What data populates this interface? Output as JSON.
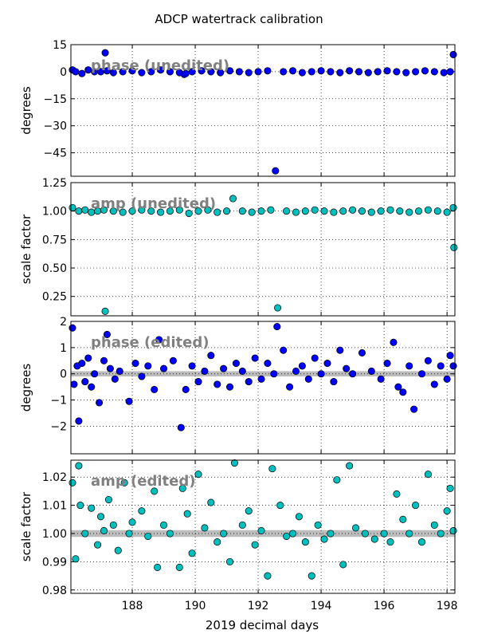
{
  "title": "ADCP watertrack calibration",
  "xlabel": "2019 decimal days",
  "colors": {
    "phase": "#0000ff",
    "amp": "#00bfbf",
    "band": "#a0a0a0"
  },
  "chart_data": [
    {
      "type": "scatter",
      "annotation": "phase (unedited)",
      "ylabel": "degrees",
      "ylim": [
        -58,
        15
      ],
      "xlim": [
        186.05,
        198.25
      ],
      "yticks": [
        "15",
        "0",
        "−15",
        "−30",
        "−45"
      ],
      "ytick_values": [
        15,
        0,
        -15,
        -30,
        -45
      ],
      "grid": true,
      "marker_color": "#0000ff",
      "x": [
        186.1,
        186.2,
        186.4,
        186.6,
        186.8,
        187.0,
        187.2,
        187.14,
        187.4,
        187.7,
        188.0,
        188.3,
        188.6,
        188.9,
        189.2,
        189.5,
        189.65,
        189.7,
        189.9,
        190.2,
        190.5,
        190.8,
        191.1,
        191.4,
        191.7,
        192.0,
        192.3,
        192.55,
        192.8,
        193.1,
        193.4,
        193.7,
        194.0,
        194.3,
        194.6,
        194.9,
        195.2,
        195.5,
        195.8,
        196.1,
        196.4,
        196.7,
        197.0,
        197.3,
        197.6,
        197.9,
        198.1,
        198.2
      ],
      "y": [
        1,
        0,
        -1,
        1,
        0,
        0,
        0.5,
        10.5,
        -0.5,
        0,
        0.5,
        -0.5,
        0,
        1,
        0,
        -0.5,
        -1.5,
        -1,
        0,
        0.5,
        0,
        -0.5,
        0.5,
        0,
        -0.5,
        0,
        0.5,
        -55,
        0,
        0.5,
        -0.5,
        0,
        0.5,
        0,
        -0.5,
        0.5,
        0,
        -0.5,
        0,
        0.5,
        0,
        -0.5,
        0,
        0.5,
        0,
        -0.5,
        0,
        9.5
      ]
    },
    {
      "type": "scatter",
      "annotation": "amp (unedited)",
      "ylabel": "scale factor",
      "ylim": [
        0.08,
        1.25
      ],
      "xlim": [
        186.05,
        198.25
      ],
      "yticks": [
        "1.25",
        "1.00",
        "0.75",
        "0.50",
        "0.25"
      ],
      "ytick_values": [
        1.25,
        1.0,
        0.75,
        0.5,
        0.25
      ],
      "grid": true,
      "marker_color": "#00bfbf",
      "x": [
        186.1,
        186.3,
        186.5,
        186.7,
        186.9,
        187.1,
        187.14,
        187.4,
        187.7,
        188.0,
        188.3,
        188.6,
        188.9,
        189.2,
        189.5,
        189.8,
        190.1,
        190.4,
        190.7,
        191.0,
        191.2,
        191.5,
        191.8,
        192.1,
        192.4,
        192.62,
        192.9,
        193.2,
        193.5,
        193.8,
        194.1,
        194.4,
        194.7,
        195.0,
        195.3,
        195.6,
        195.9,
        196.2,
        196.5,
        196.8,
        197.1,
        197.4,
        197.7,
        198.0,
        198.2,
        198.22
      ],
      "y": [
        1.03,
        1.0,
        1.01,
        0.99,
        1.0,
        1.01,
        0.12,
        1.0,
        0.99,
        1.0,
        1.01,
        1.0,
        0.99,
        1.0,
        1.01,
        0.98,
        1.0,
        1.01,
        0.99,
        1.0,
        1.11,
        1.0,
        0.99,
        1.0,
        1.01,
        0.15,
        1.0,
        0.99,
        1.0,
        1.01,
        1.0,
        0.99,
        1.0,
        1.01,
        1.0,
        0.99,
        1.0,
        1.01,
        1.0,
        0.99,
        1.0,
        1.01,
        1.0,
        0.99,
        1.03,
        0.68
      ]
    },
    {
      "type": "scatter",
      "annotation": "phase (edited)",
      "ylabel": "degrees",
      "ylim": [
        -3.05,
        2.0
      ],
      "xlim": [
        186.05,
        198.25
      ],
      "yticks": [
        "2",
        "1",
        "0",
        "−1",
        "−2"
      ],
      "ytick_values": [
        2,
        1,
        0,
        -1,
        -2
      ],
      "band": [
        -0.1,
        0.1
      ],
      "grid": true,
      "marker_color": "#0000ff",
      "x": [
        186.1,
        186.15,
        186.25,
        186.3,
        186.4,
        186.5,
        186.6,
        186.7,
        186.8,
        186.95,
        187.1,
        187.2,
        187.3,
        187.45,
        187.6,
        187.9,
        188.1,
        188.3,
        188.5,
        188.7,
        188.85,
        189.0,
        189.3,
        189.55,
        189.7,
        189.9,
        190.1,
        190.3,
        190.5,
        190.7,
        190.9,
        191.1,
        191.3,
        191.5,
        191.7,
        191.9,
        192.1,
        192.3,
        192.5,
        192.6,
        192.8,
        193.0,
        193.2,
        193.4,
        193.6,
        193.8,
        194.0,
        194.2,
        194.4,
        194.6,
        194.8,
        195.0,
        195.3,
        195.6,
        195.9,
        196.1,
        196.3,
        196.45,
        196.6,
        196.8,
        196.95,
        197.2,
        197.4,
        197.6,
        197.8,
        198.0,
        198.1,
        198.2
      ],
      "y": [
        1.75,
        -0.4,
        0.3,
        -1.8,
        0.4,
        -0.3,
        0.6,
        -0.5,
        0.0,
        -1.1,
        0.5,
        1.5,
        0.2,
        -0.2,
        0.1,
        -1.05,
        0.4,
        -0.1,
        0.3,
        -0.6,
        1.3,
        0.2,
        0.5,
        -2.05,
        -0.6,
        0.3,
        -0.3,
        0.1,
        0.7,
        -0.4,
        0.2,
        -0.5,
        0.4,
        0.1,
        -0.3,
        0.6,
        -0.2,
        0.4,
        0.0,
        1.8,
        0.9,
        -0.5,
        0.1,
        0.3,
        -0.2,
        0.6,
        0.0,
        0.4,
        -0.3,
        0.9,
        0.2,
        0.0,
        0.8,
        0.1,
        -0.2,
        0.4,
        1.2,
        -0.5,
        -0.7,
        0.3,
        -1.35,
        0.0,
        0.5,
        -0.4,
        0.3,
        -0.2,
        0.7,
        0.3
      ]
    },
    {
      "type": "scatter",
      "annotation": "amp (edited)",
      "ylabel": "scale factor",
      "ylim": [
        0.9788,
        1.026
      ],
      "xlim": [
        186.05,
        198.25
      ],
      "yticks": [
        "1.02",
        "1.01",
        "1.00",
        "0.99",
        "0.98"
      ],
      "ytick_values": [
        1.02,
        1.01,
        1.0,
        0.99,
        0.98
      ],
      "band": [
        0.9988,
        1.0012
      ],
      "grid": true,
      "marker_color": "#00bfbf",
      "x": [
        186.1,
        186.2,
        186.3,
        186.35,
        186.5,
        186.7,
        186.9,
        187.0,
        187.1,
        187.25,
        187.4,
        187.55,
        187.75,
        187.9,
        188.0,
        188.3,
        188.5,
        188.7,
        188.8,
        189.0,
        189.2,
        189.5,
        189.6,
        189.75,
        189.9,
        190.1,
        190.3,
        190.5,
        190.7,
        190.9,
        191.1,
        191.25,
        191.5,
        191.7,
        191.9,
        192.1,
        192.3,
        192.45,
        192.7,
        192.9,
        193.1,
        193.3,
        193.5,
        193.7,
        193.9,
        194.1,
        194.3,
        194.5,
        194.7,
        194.9,
        195.1,
        195.4,
        195.7,
        196.0,
        196.2,
        196.4,
        196.6,
        196.8,
        197.0,
        197.2,
        197.4,
        197.6,
        197.8,
        198.0,
        198.1,
        198.2
      ],
      "y": [
        1.018,
        0.991,
        1.024,
        1.01,
        1.0,
        1.009,
        0.996,
        1.006,
        1.001,
        1.012,
        1.003,
        0.994,
        1.018,
        1.0,
        1.004,
        1.008,
        0.999,
        1.015,
        0.988,
        1.003,
        1.0,
        0.988,
        1.016,
        1.007,
        0.993,
        1.021,
        1.002,
        1.011,
        0.997,
        1.0,
        0.99,
        1.025,
        1.003,
        1.008,
        0.996,
        1.001,
        0.985,
        1.023,
        1.01,
        0.999,
        1.0,
        1.006,
        0.997,
        0.985,
        1.003,
        0.998,
        1.0,
        1.019,
        0.989,
        1.024,
        1.002,
        1.0,
        0.998,
        1.0,
        0.997,
        1.014,
        1.005,
        1.0,
        1.01,
        0.997,
        1.021,
        1.003,
        1.0,
        1.008,
        1.016,
        1.001
      ]
    }
  ],
  "xaxis": {
    "xlim": [
      186.05,
      198.25
    ],
    "ticks": [
      "188",
      "190",
      "192",
      "194",
      "196",
      "198"
    ],
    "tick_values": [
      188,
      190,
      192,
      194,
      196,
      198
    ]
  }
}
